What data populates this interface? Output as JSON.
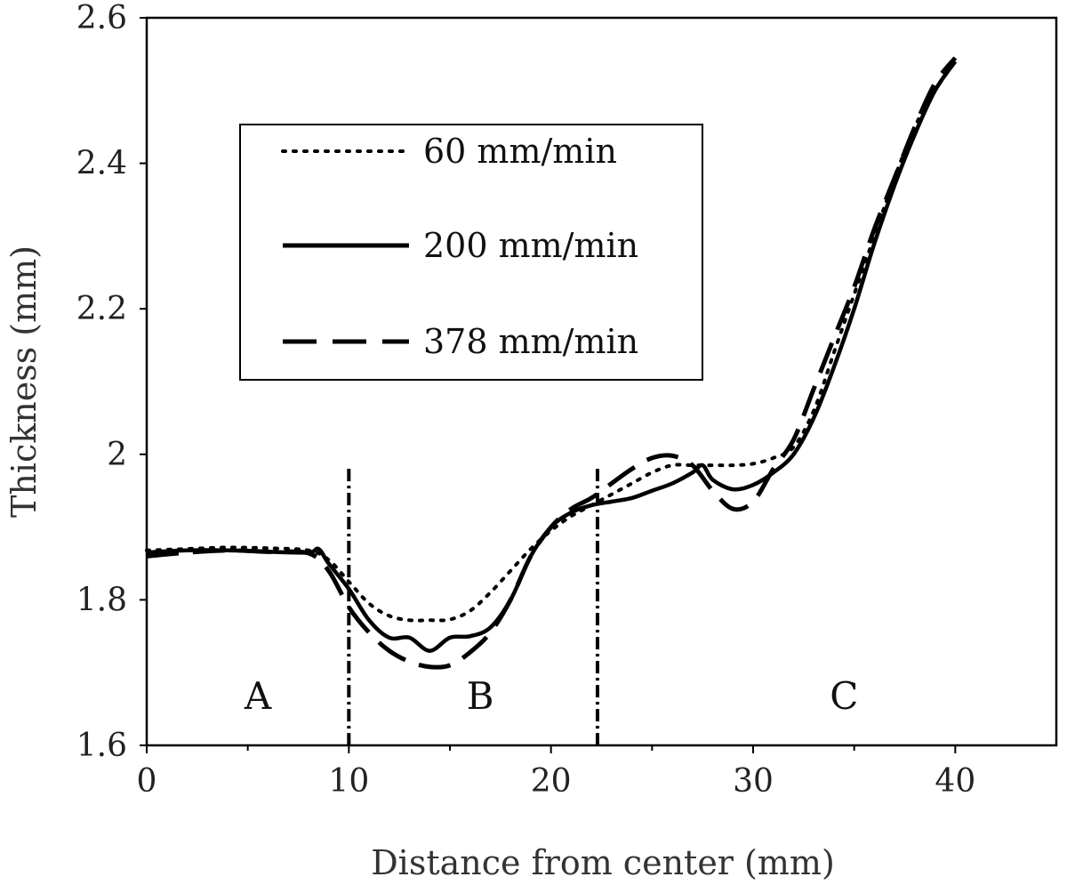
{
  "chart_data": {
    "type": "line",
    "title": "",
    "xlabel": "Distance from center (mm)",
    "ylabel": "Thickness (mm)",
    "xlim": [
      0,
      45
    ],
    "ylim": [
      1.6,
      2.6
    ],
    "x_ticks": [
      0,
      10,
      20,
      30,
      40
    ],
    "y_ticks": [
      1.6,
      1.8,
      2,
      2.2,
      2.4,
      2.6
    ],
    "x_tick_labels": [
      "0",
      "10",
      "20",
      "30",
      "40"
    ],
    "y_tick_labels": [
      "1.6",
      "1.8",
      "2",
      "2.2",
      "2.4",
      "2.6"
    ],
    "grid": false,
    "legend_position": "upper-left",
    "series": [
      {
        "name": "60 mm/min",
        "style": "dotted",
        "color": "#000000",
        "points": [
          [
            0,
            1.868
          ],
          [
            2,
            1.87
          ],
          [
            4,
            1.872
          ],
          [
            6,
            1.871
          ],
          [
            8,
            1.868
          ],
          [
            9,
            1.855
          ],
          [
            10,
            1.825
          ],
          [
            11,
            1.795
          ],
          [
            12,
            1.778
          ],
          [
            13,
            1.772
          ],
          [
            14,
            1.772
          ],
          [
            15,
            1.773
          ],
          [
            16,
            1.785
          ],
          [
            17,
            1.81
          ],
          [
            18,
            1.84
          ],
          [
            19,
            1.87
          ],
          [
            20,
            1.895
          ],
          [
            21,
            1.915
          ],
          [
            22,
            1.93
          ],
          [
            23,
            1.945
          ],
          [
            24,
            1.96
          ],
          [
            25,
            1.975
          ],
          [
            26,
            1.985
          ],
          [
            27,
            1.985
          ],
          [
            28,
            1.985
          ],
          [
            29,
            1.985
          ],
          [
            30,
            1.987
          ],
          [
            31,
            1.995
          ],
          [
            32,
            2.01
          ],
          [
            33,
            2.06
          ],
          [
            34,
            2.14
          ],
          [
            35,
            2.22
          ],
          [
            36,
            2.3
          ],
          [
            37,
            2.38
          ],
          [
            38,
            2.45
          ],
          [
            39,
            2.5
          ],
          [
            40,
            2.54
          ]
        ]
      },
      {
        "name": "200 mm/min",
        "style": "solid",
        "color": "#000000",
        "points": [
          [
            0,
            1.865
          ],
          [
            2,
            1.868
          ],
          [
            4,
            1.868
          ],
          [
            6,
            1.866
          ],
          [
            8,
            1.865
          ],
          [
            8.5,
            1.87
          ],
          [
            9,
            1.85
          ],
          [
            10,
            1.815
          ],
          [
            11,
            1.772
          ],
          [
            12,
            1.748
          ],
          [
            13,
            1.748
          ],
          [
            14,
            1.73
          ],
          [
            15,
            1.748
          ],
          [
            16,
            1.75
          ],
          [
            17,
            1.762
          ],
          [
            18,
            1.8
          ],
          [
            19,
            1.86
          ],
          [
            20,
            1.9
          ],
          [
            21,
            1.92
          ],
          [
            22,
            1.93
          ],
          [
            23,
            1.935
          ],
          [
            24,
            1.94
          ],
          [
            25,
            1.95
          ],
          [
            26,
            1.96
          ],
          [
            27,
            1.975
          ],
          [
            27.5,
            1.985
          ],
          [
            28,
            1.965
          ],
          [
            29,
            1.952
          ],
          [
            30,
            1.958
          ],
          [
            31,
            1.975
          ],
          [
            32,
            2.0
          ],
          [
            33,
            2.05
          ],
          [
            34,
            2.12
          ],
          [
            35,
            2.2
          ],
          [
            36,
            2.29
          ],
          [
            37,
            2.37
          ],
          [
            38,
            2.44
          ],
          [
            39,
            2.5
          ],
          [
            40,
            2.54
          ]
        ]
      },
      {
        "name": "378 mm/min",
        "style": "dashed",
        "color": "#000000",
        "points": [
          [
            0,
            1.86
          ],
          [
            2,
            1.865
          ],
          [
            4,
            1.868
          ],
          [
            6,
            1.866
          ],
          [
            8,
            1.864
          ],
          [
            9,
            1.84
          ],
          [
            10,
            1.79
          ],
          [
            11,
            1.755
          ],
          [
            12,
            1.73
          ],
          [
            13,
            1.715
          ],
          [
            14,
            1.708
          ],
          [
            15,
            1.71
          ],
          [
            16,
            1.728
          ],
          [
            17,
            1.755
          ],
          [
            18,
            1.8
          ],
          [
            19,
            1.86
          ],
          [
            20,
            1.9
          ],
          [
            21,
            1.925
          ],
          [
            22,
            1.94
          ],
          [
            23,
            1.96
          ],
          [
            24,
            1.98
          ],
          [
            25,
            1.995
          ],
          [
            26,
            1.998
          ],
          [
            27,
            1.985
          ],
          [
            28,
            1.95
          ],
          [
            29,
            1.925
          ],
          [
            30,
            1.935
          ],
          [
            31,
            1.98
          ],
          [
            32,
            2.02
          ],
          [
            33,
            2.09
          ],
          [
            34,
            2.16
          ],
          [
            35,
            2.23
          ],
          [
            36,
            2.31
          ],
          [
            37,
            2.38
          ],
          [
            38,
            2.45
          ],
          [
            39,
            2.51
          ],
          [
            40,
            2.545
          ]
        ]
      }
    ],
    "dividers": [
      10,
      22.3
    ],
    "regions": [
      {
        "label": "A",
        "x": 5.5,
        "y": 1.65
      },
      {
        "label": "B",
        "x": 16.5,
        "y": 1.65
      },
      {
        "label": "C",
        "x": 34.5,
        "y": 1.65
      }
    ]
  }
}
